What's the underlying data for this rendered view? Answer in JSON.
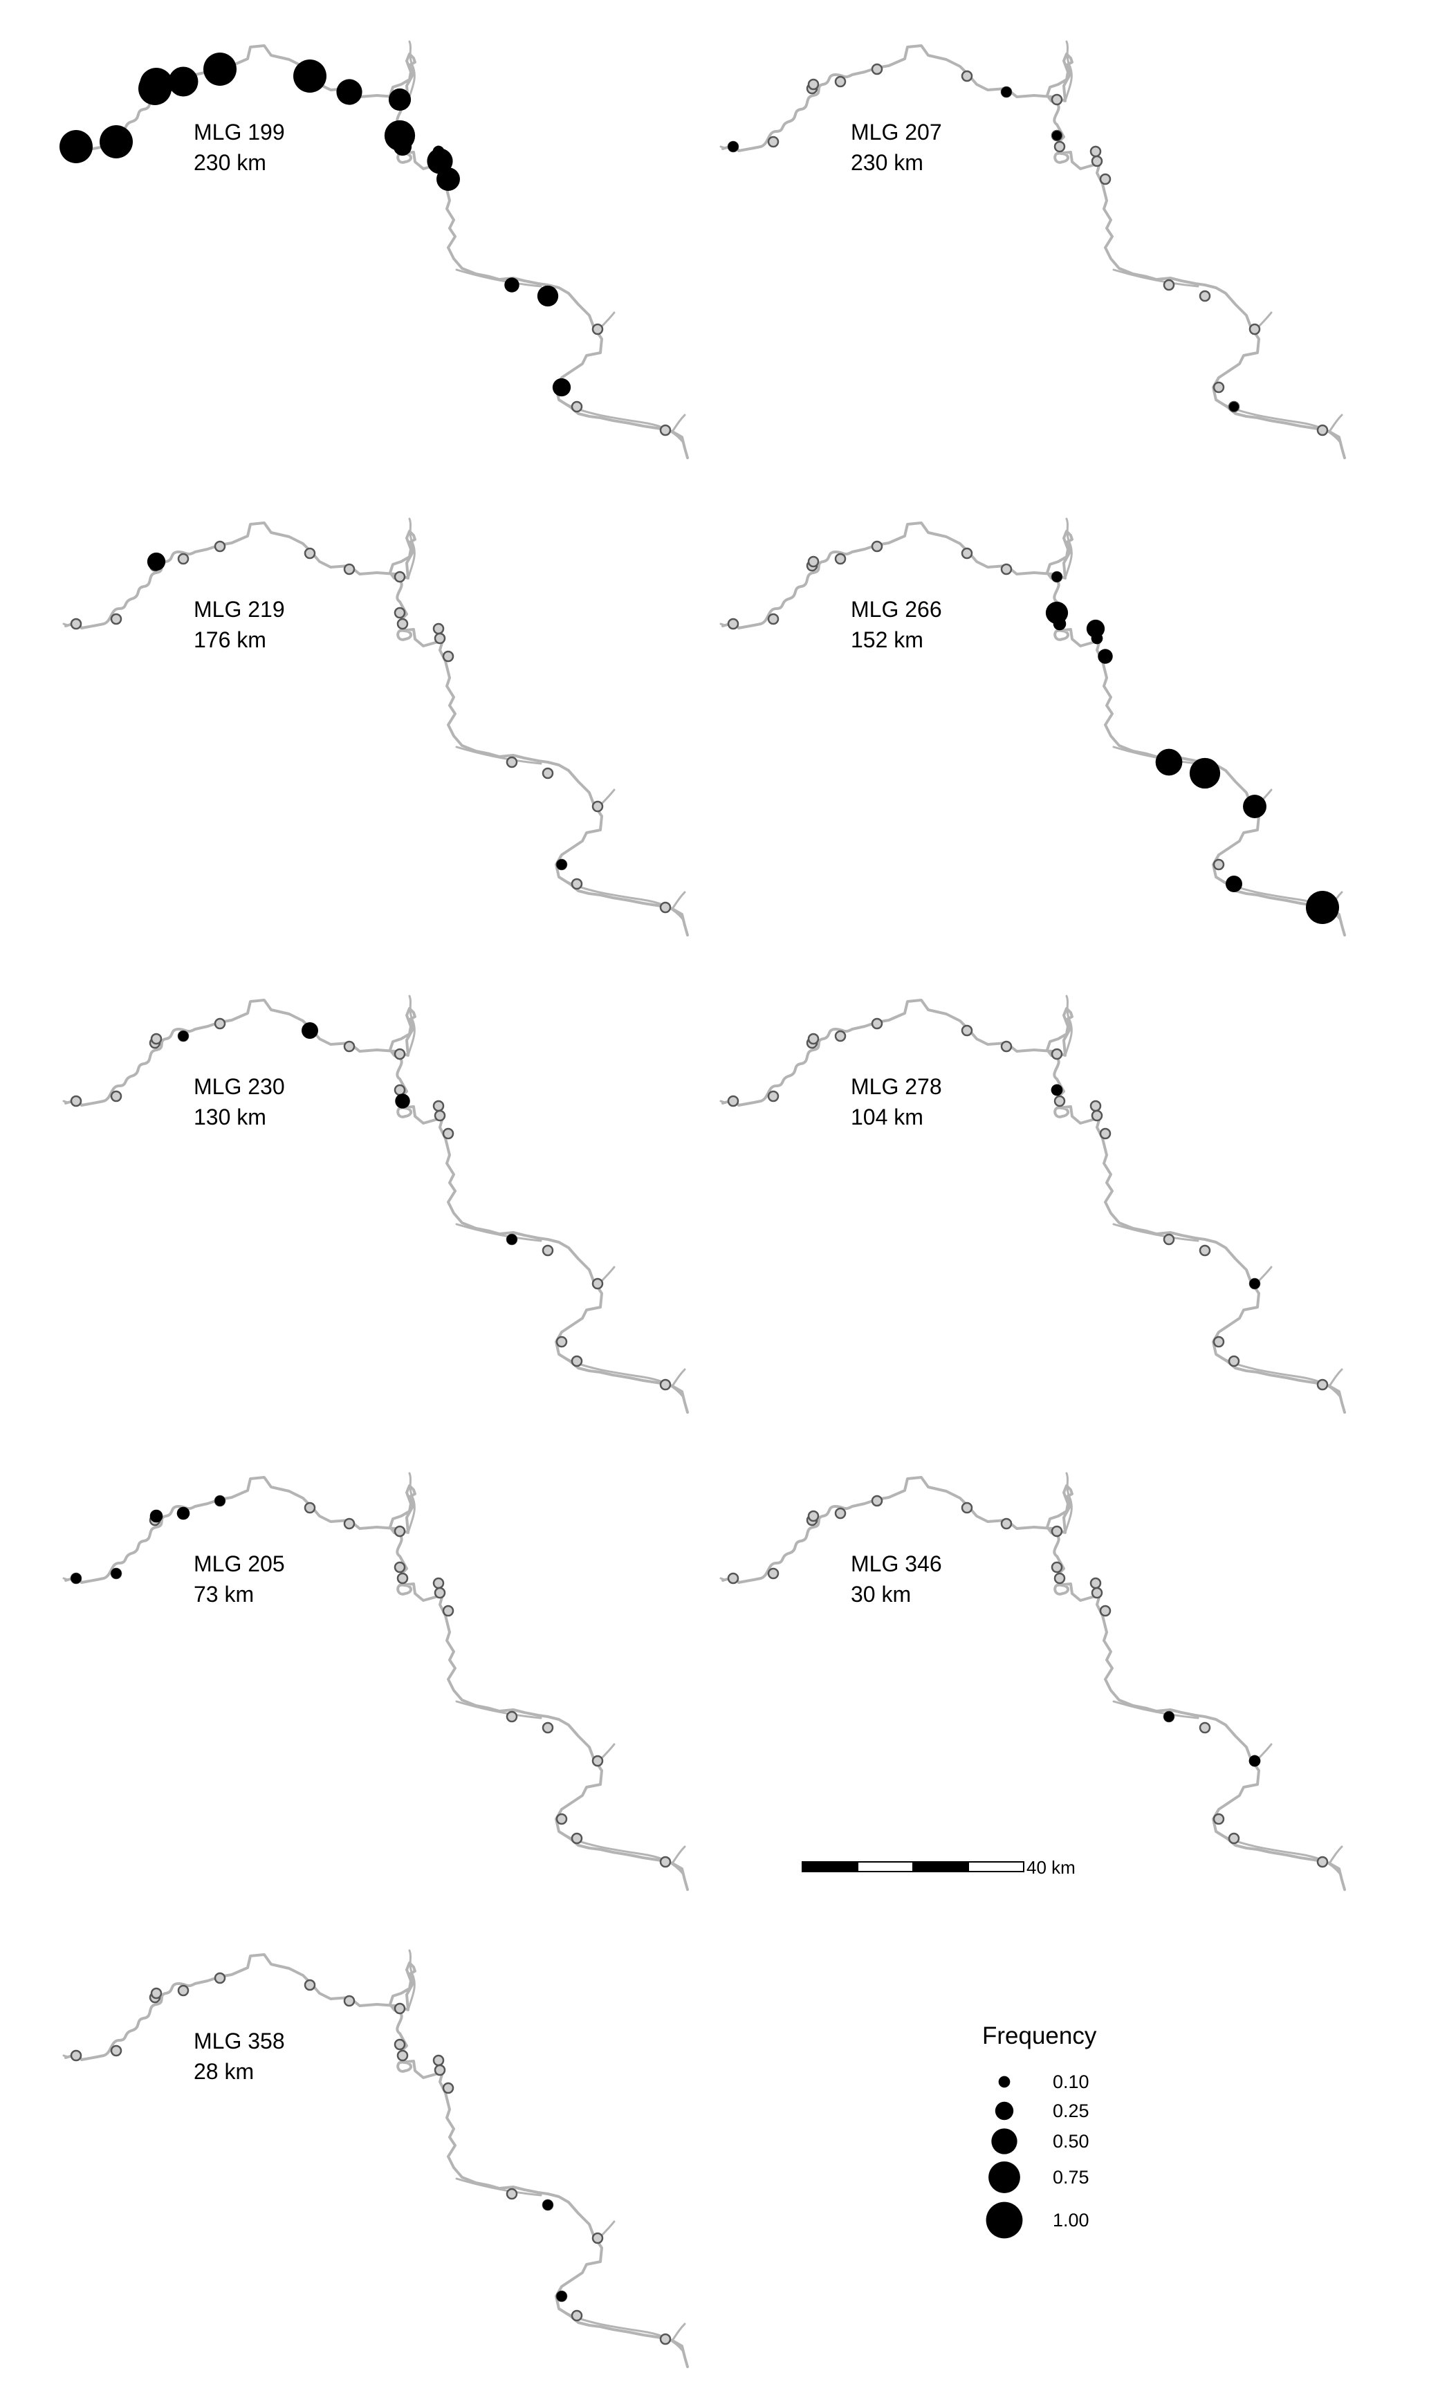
{
  "panels": [
    {
      "name": "MLG 199",
      "distance": "230 km",
      "occurrences": [
        {
          "site": 0,
          "freq": 1.0
        },
        {
          "site": 1,
          "freq": 1.0
        },
        {
          "site": 2,
          "freq": 1.0
        },
        {
          "site": 3,
          "freq": 1.0
        },
        {
          "site": 4,
          "freq": 0.8
        },
        {
          "site": 5,
          "freq": 1.0
        },
        {
          "site": 6,
          "freq": 1.0
        },
        {
          "site": 7,
          "freq": 0.6
        },
        {
          "site": 8,
          "freq": 0.45
        },
        {
          "site": 9,
          "freq": 0.85
        },
        {
          "site": 10,
          "freq": 0.3
        },
        {
          "site": 11,
          "freq": 0.12
        },
        {
          "site": 12,
          "freq": 0.6
        },
        {
          "site": 13,
          "freq": 0.5
        },
        {
          "site": 14,
          "freq": 0.2
        },
        {
          "site": 15,
          "freq": 0.4
        },
        {
          "site": 16,
          "freq": 0.3
        }
      ]
    },
    {
      "name": "MLG 207",
      "distance": "230 km",
      "occurrences": [
        {
          "site": 0,
          "freq": 0.1
        },
        {
          "site": 7,
          "freq": 0.1
        },
        {
          "site": 9,
          "freq": 0.08
        },
        {
          "site": 17,
          "freq": 0.08
        }
      ]
    },
    {
      "name": "MLG 219",
      "distance": "176 km",
      "occurrences": [
        {
          "site": 3,
          "freq": 0.3
        },
        {
          "site": 16,
          "freq": 0.1
        }
      ]
    },
    {
      "name": "MLG 266",
      "distance": "152 km",
      "occurrences": [
        {
          "site": 8,
          "freq": 0.1
        },
        {
          "site": 9,
          "freq": 0.45
        },
        {
          "site": 10,
          "freq": 0.15
        },
        {
          "site": 11,
          "freq": 0.3
        },
        {
          "site": 12,
          "freq": 0.12
        },
        {
          "site": 13,
          "freq": 0.2
        },
        {
          "site": 14,
          "freq": 0.65
        },
        {
          "site": 15,
          "freq": 0.85
        },
        {
          "site": 18,
          "freq": 0.5
        },
        {
          "site": 17,
          "freq": 0.25
        },
        {
          "site": 19,
          "freq": 1.0
        }
      ]
    },
    {
      "name": "MLG 230",
      "distance": "130 km",
      "occurrences": [
        {
          "site": 4,
          "freq": 0.1
        },
        {
          "site": 6,
          "freq": 0.25
        },
        {
          "site": 10,
          "freq": 0.2
        },
        {
          "site": 14,
          "freq": 0.1
        }
      ]
    },
    {
      "name": "MLG 278",
      "distance": "104 km",
      "occurrences": [
        {
          "site": 9,
          "freq": 0.12
        },
        {
          "site": 18,
          "freq": 0.1
        }
      ]
    },
    {
      "name": "MLG 205",
      "distance": "73 km",
      "occurrences": [
        {
          "site": 0,
          "freq": 0.1
        },
        {
          "site": 1,
          "freq": 0.1
        },
        {
          "site": 3,
          "freq": 0.15
        },
        {
          "site": 4,
          "freq": 0.15
        },
        {
          "site": 5,
          "freq": 0.1
        }
      ]
    },
    {
      "name": "MLG 346",
      "distance": "30 km",
      "occurrences": [
        {
          "site": 14,
          "freq": 0.1
        },
        {
          "site": 18,
          "freq": 0.12
        }
      ]
    },
    {
      "name": "MLG 358",
      "distance": "28 km",
      "occurrences": [
        {
          "site": 15,
          "freq": 0.1
        },
        {
          "site": 16,
          "freq": 0.1
        }
      ]
    }
  ],
  "scalebar": {
    "label": "40 km"
  },
  "legend": {
    "title": "Frequency",
    "entries": [
      {
        "value": 0.1,
        "label": "0.10"
      },
      {
        "value": 0.25,
        "label": "0.25"
      },
      {
        "value": 0.5,
        "label": "0.50"
      },
      {
        "value": 0.75,
        "label": "0.75"
      },
      {
        "value": 1.0,
        "label": "1.00"
      }
    ]
  },
  "colors": {
    "river": "#b4b4b4",
    "occurrence": "#000000",
    "site_ring": "#555555",
    "site_fill": "#cfcfcf"
  }
}
